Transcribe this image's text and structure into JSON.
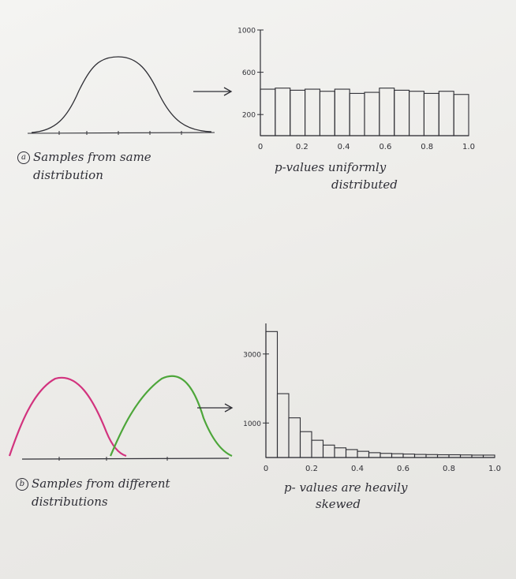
{
  "panel_a": {
    "marker": "a",
    "caption_line1": "Samples from same",
    "caption_line2": "distribution",
    "hist_caption_line1": "p-values uniformly",
    "hist_caption_line2": "distributed"
  },
  "panel_b": {
    "marker": "b",
    "caption_line1": "Samples from different",
    "caption_line2": "distributions",
    "hist_caption_line1": "p- values are heavily",
    "hist_caption_line2": "skewed"
  },
  "colors": {
    "ink": "#2f2f35",
    "curve_pink": "#d2337e",
    "curve_green": "#4da63a"
  },
  "chart_data": [
    {
      "type": "bar",
      "x_tick_labels": [
        "0",
        "0.2",
        "0.4",
        "0.6",
        "0.8",
        "1.0"
      ],
      "y_tick_labels": [
        "200",
        "600",
        "1000"
      ],
      "ylim": [
        0,
        1000
      ],
      "bin_edges_range": [
        0,
        1
      ],
      "values": [
        440,
        450,
        430,
        440,
        420,
        440,
        400,
        410,
        450,
        430,
        420,
        400,
        420,
        390
      ]
    },
    {
      "type": "bar",
      "x_tick_labels": [
        "0",
        "0.2",
        "0.4",
        "0.6",
        "0.8",
        "1.0"
      ],
      "y_tick_labels": [
        "1000",
        "3000"
      ],
      "ylim": [
        0,
        4000
      ],
      "bin_edges_range": [
        0,
        1
      ],
      "values": [
        3650,
        1850,
        1150,
        750,
        500,
        360,
        280,
        230,
        180,
        140,
        120,
        110,
        100,
        90,
        85,
        80,
        80,
        75,
        70,
        70
      ]
    }
  ]
}
